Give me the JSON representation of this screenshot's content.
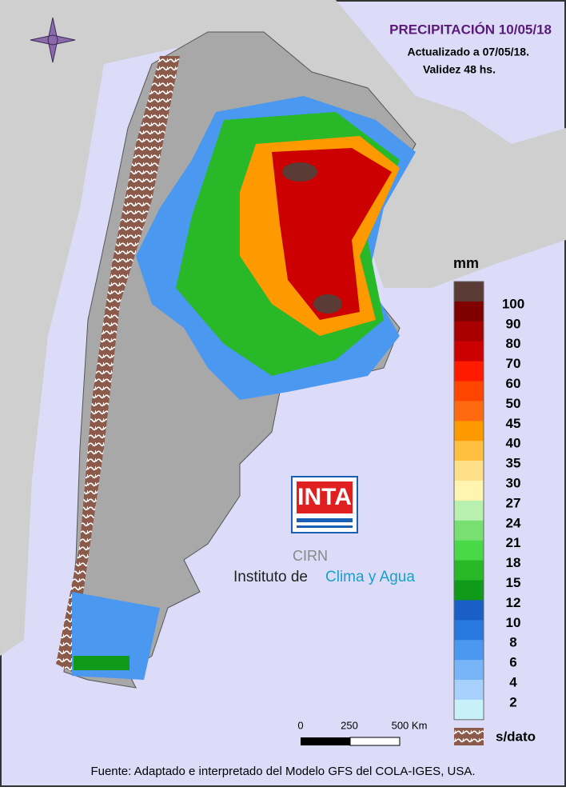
{
  "header": {
    "title": "PRECIPITACIÓN 10/05/18",
    "updated": "Actualizado a 07/05/18.",
    "validity": "Validez 48 hs."
  },
  "legend": {
    "unit": "mm",
    "labels": [
      100,
      90,
      80,
      70,
      60,
      50,
      45,
      40,
      35,
      30,
      27,
      24,
      21,
      18,
      15,
      12,
      10,
      8,
      6,
      4,
      2
    ],
    "colors": [
      "#5b3b36",
      "#800000",
      "#a80000",
      "#cc0000",
      "#ff1a00",
      "#ff4500",
      "#ff6a10",
      "#ff9900",
      "#ffbf40",
      "#ffe08a",
      "#fff5b0",
      "#b8f0b0",
      "#78e070",
      "#48d848",
      "#28b828",
      "#0f9a1a",
      "#1a5fc8",
      "#2878e0",
      "#4a98f0",
      "#78b4f8",
      "#a8d0fc",
      "#c8f0f8"
    ],
    "no_data": "s/dato"
  },
  "scale_bar": {
    "labels": [
      "0",
      "250",
      "500 Km"
    ]
  },
  "logo": {
    "brand": "INTA",
    "center": "CIRN",
    "institute_a": "Instituto de",
    "institute_b": "Clima y Agua"
  },
  "footer": {
    "source": "Fuente: Adaptado e interpretado del Modelo GFS del COLA-IGES, USA."
  }
}
